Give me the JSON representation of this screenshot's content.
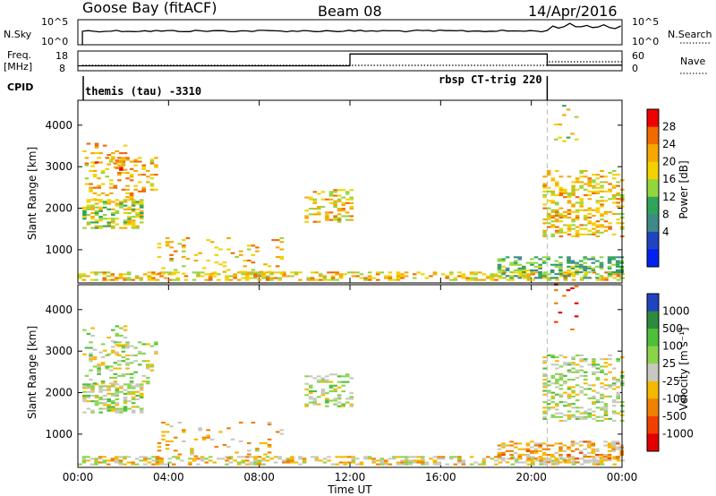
{
  "header": {
    "title": "Goose Bay (fitACF)",
    "beam": "Beam 08",
    "date": "14/Apr/2016"
  },
  "top_panels": {
    "nsky_label": "N.Sky",
    "nsky_ticks": [
      "10^5",
      "10^0"
    ],
    "nsearch_label": "N.Search",
    "freq_label": "Freq.",
    "freq_unit": "[MHz]",
    "freq_ticks": [
      "18",
      "8"
    ],
    "nave_label": "Nave",
    "nave_ticks": [
      "60",
      "0"
    ],
    "cpid_label": "CPID",
    "cpid_1": "themis (tau) -3310",
    "cpid_2": "rbsp CT-trig 220",
    "nsky_level": 0.55,
    "nsky_level_late": 0.75,
    "freq_levels": [
      {
        "start_h": 0,
        "end_h": 12,
        "mhz": 10.5
      },
      {
        "start_h": 12,
        "end_h": 20.7,
        "mhz": 16.5
      },
      {
        "start_h": 20.7,
        "end_h": 24,
        "mhz": 10.8
      }
    ],
    "cpid_switch_h": 20.7
  },
  "chart_data": [
    {
      "type": "heatmap",
      "name": "Power",
      "ylabel": "Slant Range [km]",
      "xlabel": "Time UT",
      "ylim": [
        200,
        4600
      ],
      "xlim": [
        0,
        24
      ],
      "xticks": [
        "00:00",
        "04:00",
        "08:00",
        "12:00",
        "16:00",
        "20:00",
        "00:00"
      ],
      "yticks": [
        "1000",
        "2000",
        "3000",
        "4000"
      ],
      "colorbar_label": "Power [dB]",
      "colorbar_ticks": [
        "28",
        "24",
        "20",
        "16",
        "12",
        "8",
        "4"
      ],
      "colorbar_colors": [
        "#ee0000",
        "#f06a00",
        "#f5a800",
        "#f2d200",
        "#93d63c",
        "#2ea55a",
        "#3e8a88",
        "#2044c0",
        "#0022ee"
      ],
      "scatter_regions": [
        {
          "t": [
            0.2,
            2.8
          ],
          "r": [
            1500,
            2200
          ],
          "c": 0.45,
          "d": 0.55
        },
        {
          "t": [
            0.3,
            3.4
          ],
          "r": [
            2200,
            3200
          ],
          "c": 0.3,
          "d": 0.25
        },
        {
          "t": [
            0.2,
            2.0
          ],
          "r": [
            2900,
            3600
          ],
          "c": 0.25,
          "d": 0.18
        },
        {
          "t": [
            0,
            24
          ],
          "r": [
            250,
            450
          ],
          "c": 0.35,
          "d": 0.45
        },
        {
          "t": [
            3.5,
            9
          ],
          "r": [
            400,
            1300
          ],
          "c": 0.3,
          "d": 0.12
        },
        {
          "t": [
            10,
            12
          ],
          "r": [
            1650,
            2450
          ],
          "c": 0.35,
          "d": 0.35
        },
        {
          "t": [
            18.5,
            24
          ],
          "r": [
            300,
            800
          ],
          "c": 0.6,
          "d": 0.45
        },
        {
          "t": [
            20.5,
            24
          ],
          "r": [
            1300,
            2900
          ],
          "c": 0.35,
          "d": 0.35
        },
        {
          "t": [
            21,
            22
          ],
          "r": [
            3500,
            4700
          ],
          "c": 0.4,
          "d": 0.08
        }
      ]
    },
    {
      "type": "heatmap",
      "name": "Velocity",
      "ylabel": "Slant Range [km]",
      "xlabel": "Time UT",
      "ylim": [
        200,
        4600
      ],
      "xlim": [
        0,
        24
      ],
      "xticks": [
        "00:00",
        "04:00",
        "08:00",
        "12:00",
        "16:00",
        "20:00",
        "00:00"
      ],
      "yticks": [
        "1000",
        "2000",
        "3000",
        "4000"
      ],
      "colorbar_label": "Velocity [m s⁻¹]",
      "colorbar_ticks": [
        "1000",
        "500",
        "100",
        "25",
        "-25",
        "-100",
        "-500",
        "-1000"
      ],
      "colorbar_colors": [
        "#2044c0",
        "#2e8a3e",
        "#4ebf3a",
        "#8ad44c",
        "#c8c8c0",
        "#f5b800",
        "#f08000",
        "#f04000",
        "#e00000"
      ],
      "scatter_regions": [
        {
          "t": [
            0.2,
            2.8
          ],
          "r": [
            1500,
            2200
          ],
          "c": 0.45,
          "d": 0.55
        },
        {
          "t": [
            0.3,
            3.4
          ],
          "r": [
            2200,
            3200
          ],
          "c": 0.45,
          "d": 0.25
        },
        {
          "t": [
            0.2,
            2.0
          ],
          "r": [
            2900,
            3600
          ],
          "c": 0.45,
          "d": 0.18
        },
        {
          "t": [
            0,
            24
          ],
          "r": [
            250,
            450
          ],
          "c": 0.55,
          "d": 0.45
        },
        {
          "t": [
            3.5,
            9
          ],
          "r": [
            400,
            1300
          ],
          "c": 0.6,
          "d": 0.12
        },
        {
          "t": [
            10,
            12
          ],
          "r": [
            1650,
            2450
          ],
          "c": 0.45,
          "d": 0.35
        },
        {
          "t": [
            18.5,
            24
          ],
          "r": [
            300,
            800
          ],
          "c": 0.62,
          "d": 0.45
        },
        {
          "t": [
            20.5,
            24
          ],
          "r": [
            1300,
            2900
          ],
          "c": 0.45,
          "d": 0.35
        },
        {
          "t": [
            21,
            22
          ],
          "r": [
            3500,
            4700
          ],
          "c": 0.85,
          "d": 0.08
        }
      ]
    }
  ]
}
